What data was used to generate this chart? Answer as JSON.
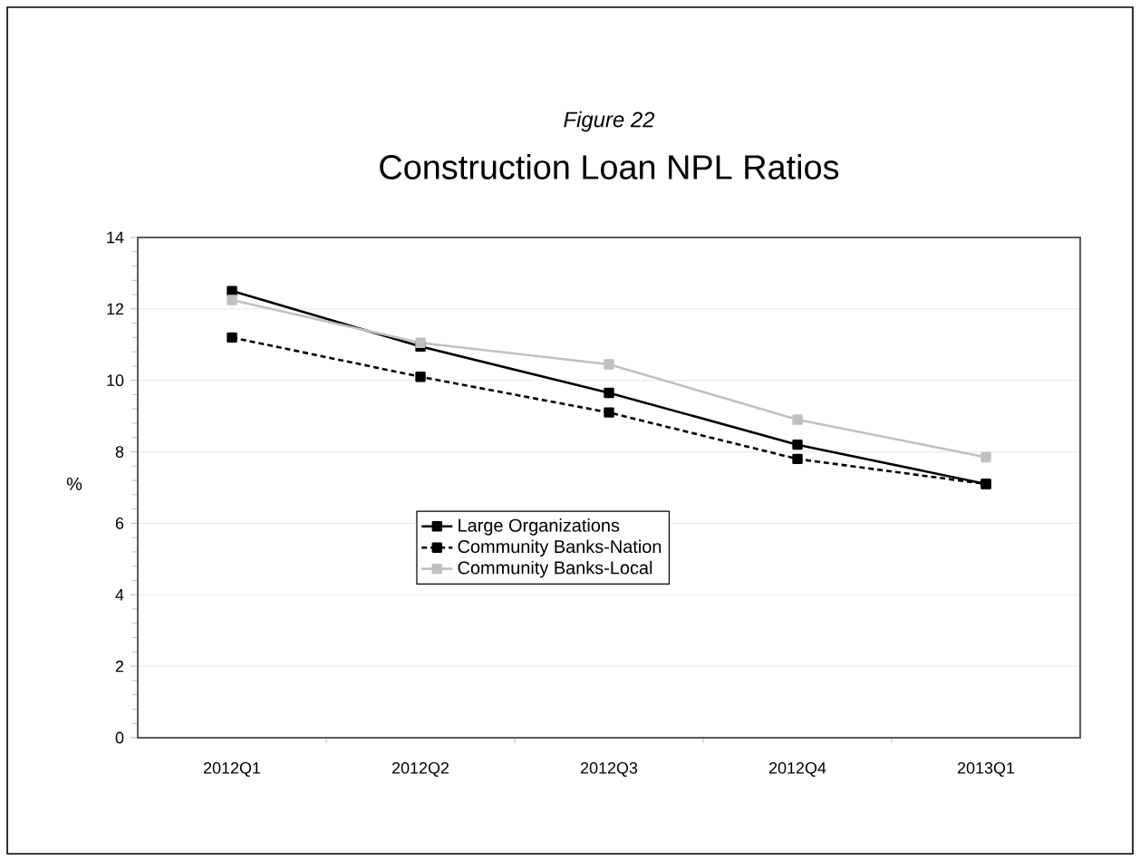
{
  "chart_data": {
    "type": "line",
    "title": "Construction Loan NPL Ratios",
    "annotations": [
      "Figure 22"
    ],
    "ylabel": "%",
    "categories": [
      "2012Q1",
      "2012Q2",
      "2012Q3",
      "2012Q4",
      "2013Q1"
    ],
    "series": [
      {
        "name": "Large Organizations",
        "color": "#000000",
        "line_style": "solid",
        "values": [
          12.5,
          10.95,
          9.65,
          8.2,
          7.1
        ]
      },
      {
        "name": "Community Banks-Nation",
        "color": "#000000",
        "line_style": "dashed",
        "values": [
          11.2,
          10.1,
          9.1,
          7.8,
          7.1
        ]
      },
      {
        "name": "Community Banks-Local",
        "color": "#c0c0c0",
        "line_style": "solid",
        "values": [
          12.25,
          11.05,
          10.45,
          8.9,
          7.85
        ]
      }
    ],
    "ylim": [
      0,
      14
    ],
    "yticks": [
      0,
      2,
      4,
      6,
      8,
      10,
      12,
      14
    ],
    "grid": "y",
    "legend": "center",
    "marker": "square"
  }
}
